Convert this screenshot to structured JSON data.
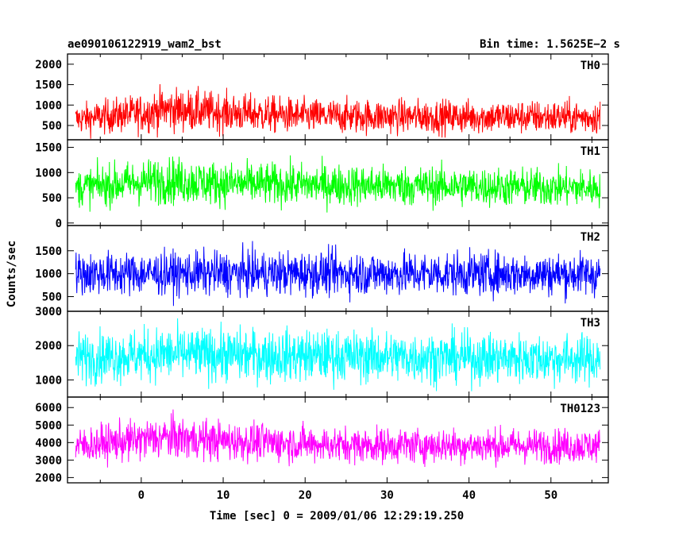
{
  "chart_data": {
    "type": "line",
    "title": "ae090106122919_wam2_bst",
    "bin_time_label": "Bin time: 1.5625E−2 s",
    "xlabel": "Time [sec] 0 = 2009/01/06 12:29:19.250",
    "ylabel": "Counts/sec",
    "xlim": [
      -9,
      57
    ],
    "x_ticks": [
      0,
      10,
      20,
      30,
      40,
      50
    ],
    "data_x_range": [
      -8,
      56
    ],
    "panels": [
      {
        "name": "TH0",
        "color": "#ff0000",
        "ylim": [
          150,
          2250
        ],
        "y_ticks": [
          500,
          1000,
          1500,
          2000
        ],
        "profile": [
          {
            "t": -8,
            "mean": 650,
            "amp": 330
          },
          {
            "t": 0,
            "mean": 800,
            "amp": 420
          },
          {
            "t": 3,
            "mean": 900,
            "amp": 480
          },
          {
            "t": 10,
            "mean": 820,
            "amp": 430
          },
          {
            "t": 20,
            "mean": 730,
            "amp": 380
          },
          {
            "t": 56,
            "mean": 700,
            "amp": 360
          }
        ]
      },
      {
        "name": "TH1",
        "color": "#00ff00",
        "ylim": [
          -50,
          1650
        ],
        "y_ticks": [
          0,
          500,
          1000,
          1500
        ],
        "profile": [
          {
            "t": -8,
            "mean": 700,
            "amp": 330
          },
          {
            "t": 3,
            "mean": 850,
            "amp": 420
          },
          {
            "t": 10,
            "mean": 780,
            "amp": 380
          },
          {
            "t": 56,
            "mean": 690,
            "amp": 330
          }
        ]
      },
      {
        "name": "TH2",
        "color": "#0000ff",
        "ylim": [
          180,
          2050
        ],
        "y_ticks": [
          500,
          1000,
          1500
        ],
        "profile": [
          {
            "t": -8,
            "mean": 1000,
            "amp": 420
          },
          {
            "t": 20,
            "mean": 1010,
            "amp": 430
          },
          {
            "t": 56,
            "mean": 990,
            "amp": 420
          }
        ]
      },
      {
        "name": "TH3",
        "color": "#00ffff",
        "ylim": [
          500,
          3000
        ],
        "y_ticks": [
          1000,
          2000,
          3000
        ],
        "profile": [
          {
            "t": -8,
            "mean": 1650,
            "amp": 650
          },
          {
            "t": 3,
            "mean": 1750,
            "amp": 700
          },
          {
            "t": 56,
            "mean": 1600,
            "amp": 640
          }
        ]
      },
      {
        "name": "TH0123",
        "color": "#ff00ff",
        "ylim": [
          1700,
          6600
        ],
        "y_ticks": [
          2000,
          3000,
          4000,
          5000,
          6000
        ],
        "profile": [
          {
            "t": -8,
            "mean": 3800,
            "amp": 900
          },
          {
            "t": 3,
            "mean": 4300,
            "amp": 1100
          },
          {
            "t": 10,
            "mean": 4100,
            "amp": 1000
          },
          {
            "t": 25,
            "mean": 3850,
            "amp": 900
          },
          {
            "t": 56,
            "mean": 3800,
            "amp": 880
          }
        ]
      }
    ]
  }
}
